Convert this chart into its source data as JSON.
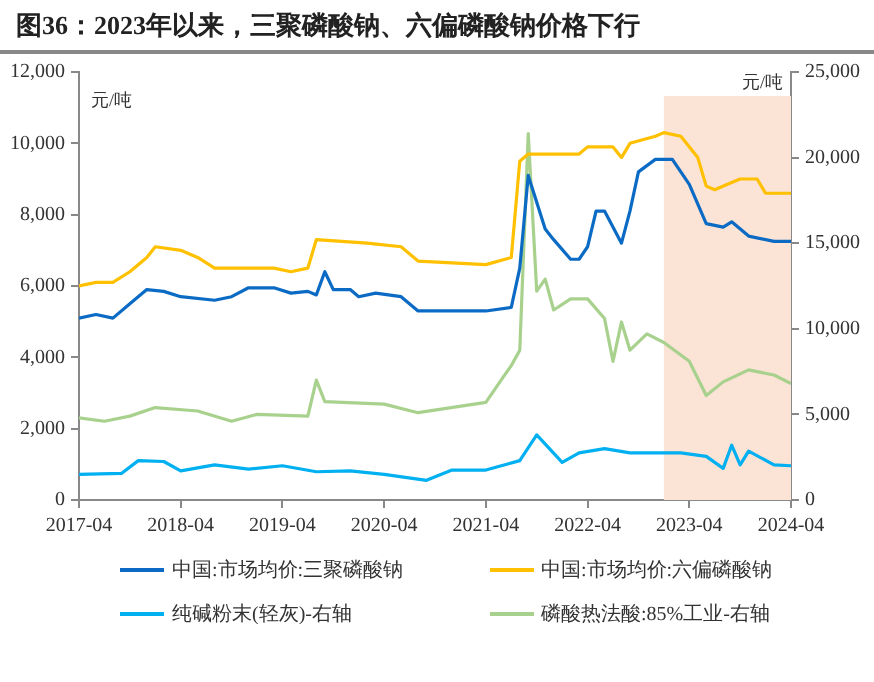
{
  "chart_data": {
    "type": "line",
    "title": "图36：2023年以来，三聚磷酸钠、六偏磷酸钠价格下行",
    "ylabel": "元/吨",
    "y2label": "元/吨",
    "xlim": [
      "2017-04",
      "2024-04"
    ],
    "xticks": [
      "2017-04",
      "2018-04",
      "2019-04",
      "2020-04",
      "2021-04",
      "2022-04",
      "2023-04",
      "2024-04"
    ],
    "ylim": [
      0,
      12000
    ],
    "yticks": [
      0,
      {
        "value": 2000,
        "label": "2,000"
      },
      {
        "value": 4000,
        "label": "4,000"
      },
      {
        "value": 6000,
        "label": "6,000"
      },
      {
        "value": 8000,
        "label": "8,000"
      },
      {
        "value": 10000,
        "label": "10,000"
      },
      {
        "value": 12000,
        "label": "12,000"
      }
    ],
    "y2lim": [
      0,
      25000
    ],
    "y2ticks": [
      0,
      {
        "value": 5000,
        "label": "5,000"
      },
      {
        "value": 10000,
        "label": "10,000"
      },
      {
        "value": 15000,
        "label": "15,000"
      },
      {
        "value": 20000,
        "label": "20,000"
      },
      {
        "value": 25000,
        "label": "25,000"
      }
    ],
    "bands": [
      {
        "axis": "x",
        "from": "2023-01",
        "to": "2024-04",
        "color": "#fbe3d6"
      }
    ],
    "legend": "bottom",
    "grid": false,
    "marker": "none",
    "line_style": "solid",
    "series": [
      {
        "name": "中国:市场均价:三聚磷酸钠",
        "color": "#0b6bc4",
        "x": [
          "2017-04",
          "2017-06",
          "2017-08",
          "2017-10",
          "2017-12",
          "2018-02",
          "2018-04",
          "2018-08",
          "2018-10",
          "2018-12",
          "2019-03",
          "2019-05",
          "2019-07",
          "2019-08",
          "2019-09",
          "2019-10",
          "2019-12",
          "2020-01",
          "2020-03",
          "2020-06",
          "2020-08",
          "2020-12",
          "2021-04",
          "2021-07",
          "2021-08",
          "2021-09",
          "2021-11",
          "2021-12",
          "2022-02",
          "2022-03",
          "2022-04",
          "2022-05",
          "2022-06",
          "2022-08",
          "2022-09",
          "2022-10",
          "2022-12",
          "2023-02",
          "2023-04",
          "2023-06",
          "2023-08",
          "2023-09",
          "2023-11",
          "2024-02",
          "2024-04"
        ],
        "values": [
          5100,
          5200,
          5100,
          5500,
          5900,
          5850,
          5700,
          5600,
          5700,
          5950,
          5950,
          5800,
          5850,
          5750,
          6400,
          5900,
          5900,
          5700,
          5800,
          5700,
          5300,
          5300,
          5300,
          5400,
          6500,
          9100,
          7600,
          7300,
          6750,
          6750,
          7100,
          8100,
          8100,
          7200,
          8100,
          9200,
          9550,
          9550,
          8850,
          7750,
          7650,
          7800,
          7400,
          7250,
          7250
        ]
      },
      {
        "name": "中国:市场均价:六偏磷酸钠",
        "color": "#ffc000",
        "x": [
          "2017-04",
          "2017-06",
          "2017-08",
          "2017-10",
          "2017-12",
          "2018-01",
          "2018-04",
          "2018-06",
          "2018-08",
          "2019-03",
          "2019-05",
          "2019-07",
          "2019-08",
          "2020-02",
          "2020-06",
          "2020-08",
          "2021-04",
          "2021-07",
          "2021-08",
          "2021-09",
          "2022-03",
          "2022-04",
          "2022-07",
          "2022-08",
          "2022-09",
          "2022-12",
          "2023-01",
          "2023-03",
          "2023-05",
          "2023-06",
          "2023-07",
          "2023-09",
          "2023-10",
          "2023-12",
          "2024-01",
          "2024-04"
        ],
        "values": [
          6000,
          6100,
          6100,
          6400,
          6800,
          7100,
          7000,
          6800,
          6500,
          6500,
          6400,
          6500,
          7300,
          7200,
          7100,
          6700,
          6600,
          6800,
          9500,
          9700,
          9700,
          9900,
          9900,
          9600,
          10000,
          10200,
          10300,
          10200,
          9600,
          8800,
          8700,
          8900,
          9000,
          9000,
          8600,
          8600
        ]
      },
      {
        "name": "纯碱粉末(轻灰)-右轴",
        "color": "#00b0f0",
        "axis": "y2",
        "x": [
          "2017-04",
          "2017-09",
          "2017-11",
          "2018-02",
          "2018-04",
          "2018-08",
          "2018-12",
          "2019-04",
          "2019-08",
          "2019-12",
          "2020-04",
          "2020-09",
          "2020-12",
          "2021-04",
          "2021-08",
          "2021-10",
          "2022-01",
          "2022-03",
          "2022-06",
          "2022-09",
          "2023-03",
          "2023-06",
          "2023-08",
          "2023-09",
          "2023-10",
          "2023-11",
          "2024-02",
          "2024-04"
        ],
        "values": [
          1500,
          1550,
          2300,
          2250,
          1700,
          2050,
          1800,
          2000,
          1650,
          1700,
          1500,
          1150,
          1750,
          1750,
          2300,
          3800,
          2200,
          2750,
          3000,
          2750,
          2750,
          2550,
          1850,
          3200,
          2050,
          2850,
          2050,
          2000
        ]
      },
      {
        "name": "磷酸热法酸:85%工业-右轴",
        "color": "#a9d18e",
        "axis": "y2",
        "x": [
          "2017-04",
          "2017-07",
          "2017-10",
          "2018-01",
          "2018-06",
          "2018-10",
          "2019-01",
          "2019-07",
          "2019-08",
          "2019-09",
          "2020-04",
          "2020-08",
          "2021-04",
          "2021-06",
          "2021-07",
          "2021-08",
          "2021-09",
          "2021-10",
          "2021-11",
          "2021-12",
          "2022-02",
          "2022-04",
          "2022-06",
          "2022-07",
          "2022-08",
          "2022-09",
          "2022-11",
          "2023-01",
          "2023-04",
          "2023-06",
          "2023-08",
          "2023-11",
          "2024-02",
          "2024-04"
        ],
        "values": [
          4800,
          4600,
          4900,
          5400,
          5200,
          4600,
          5000,
          4900,
          7000,
          5750,
          5600,
          5100,
          5700,
          7150,
          7850,
          8750,
          21400,
          12200,
          12900,
          11100,
          11750,
          11750,
          10600,
          8100,
          10400,
          8750,
          9700,
          9200,
          8100,
          6100,
          6900,
          7600,
          7300,
          6800
        ]
      }
    ]
  }
}
